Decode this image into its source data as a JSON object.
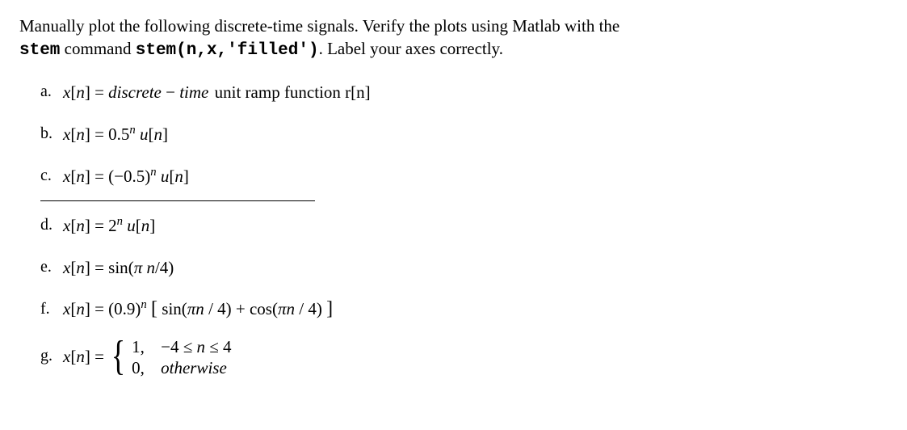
{
  "intro": {
    "line1_a": "Manually plot the following discrete-time signals. Verify the plots using Matlab with the",
    "line2_prefix": " command ",
    "stem_word": "stem",
    "stem_code": "stem(n,x,'filled')",
    "line2_suffix": ".   Label your axes correctly."
  },
  "items": {
    "a": {
      "marker": "a.",
      "lhs": "x[n] = discrete − time",
      "tail": " unit ramp function r[n]"
    },
    "b": {
      "marker": "b.",
      "expr": "x[n] = 0.5ⁿ u[n]"
    },
    "c": {
      "marker": "c.",
      "expr": "x[n] = (−0.5)ⁿ u[n]"
    },
    "d": {
      "marker": "d.",
      "expr": "x[n] = 2ⁿ u[n]"
    },
    "e": {
      "marker": "e.",
      "expr": "x[n] = sin(π n / 4)"
    },
    "f": {
      "marker": "f.",
      "expr": "x[n] = (0.9)ⁿ [ sin(πn / 4) + cos(πn / 4) ]"
    },
    "g": {
      "marker": "g.",
      "lhs": "x[n] = ",
      "case1_val": "1,",
      "case1_cond": "−4 ≤ n ≤ 4",
      "case2_val": "0,",
      "case2_cond": "otherwise"
    }
  }
}
